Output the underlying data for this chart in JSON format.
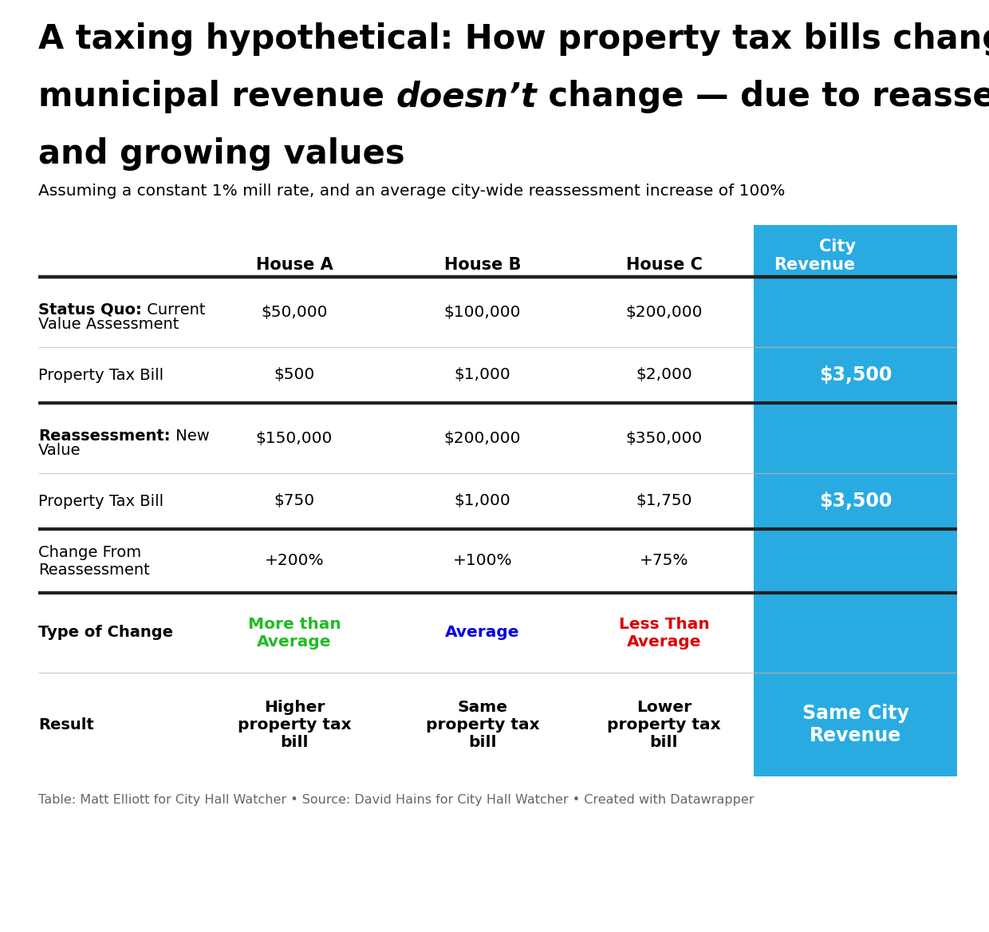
{
  "title_parts": [
    {
      "text": "A taxing hypothetical: How property tax bills change — and\nmunicipial revenue ",
      "bold": true,
      "italic": false
    },
    {
      "text": "doesn’t",
      "bold": true,
      "italic": true
    },
    {
      "text": " change — due to reassessment\nand growing values",
      "bold": true,
      "italic": false
    }
  ],
  "subtitle": "Assuming a constant 1% mill rate, and an average city-wide reassessment increase of 100%",
  "footer": "Table: Matt Elliott for City Hall Watcher • Source: David Hains for City Hall Watcher • Created with Datawrapper",
  "col_headers": [
    "House A",
    "House B",
    "House C",
    "City\nRevenue"
  ],
  "cyan_color": "#29ABE2",
  "rows": [
    {
      "label_bold": "Status Quo:",
      "label_normal": " Current\nValue Assessment",
      "house_a": "$50,000",
      "house_b": "$100,000",
      "house_c": "$200,000",
      "city_rev": "",
      "city_rev_show": false,
      "thick_top": true,
      "thick_bottom": false,
      "thin_bottom": true,
      "type_of_change": false,
      "is_result": false
    },
    {
      "label_bold": "",
      "label_normal": "Property Tax Bill",
      "house_a": "$500",
      "house_b": "$1,000",
      "house_c": "$2,000",
      "city_rev": "$3,500",
      "city_rev_show": true,
      "thick_top": false,
      "thick_bottom": true,
      "thin_bottom": false,
      "type_of_change": false,
      "is_result": false
    },
    {
      "label_bold": "Reassessment:",
      "label_normal": " New\nValue",
      "house_a": "$150,000",
      "house_b": "$200,000",
      "house_c": "$350,000",
      "city_rev": "",
      "city_rev_show": false,
      "thick_top": false,
      "thick_bottom": false,
      "thin_bottom": true,
      "type_of_change": false,
      "is_result": false
    },
    {
      "label_bold": "",
      "label_normal": "Property Tax Bill",
      "house_a": "$750",
      "house_b": "$1,000",
      "house_c": "$1,750",
      "city_rev": "$3,500",
      "city_rev_show": true,
      "thick_top": false,
      "thick_bottom": true,
      "thin_bottom": false,
      "type_of_change": false,
      "is_result": false
    },
    {
      "label_bold": "",
      "label_normal": "Change From\nReassessment",
      "house_a": "+200%",
      "house_b": "+100%",
      "house_c": "+75%",
      "city_rev": "",
      "city_rev_show": false,
      "thick_top": false,
      "thick_bottom": false,
      "thin_bottom": false,
      "type_of_change": false,
      "is_result": false
    },
    {
      "label_bold": "Type of Change",
      "label_normal": "",
      "house_a": "More than\nAverage",
      "house_b": "Average",
      "house_c": "Less Than\nAverage",
      "city_rev": "",
      "city_rev_show": false,
      "thick_top": true,
      "thick_bottom": false,
      "thin_bottom": true,
      "type_of_change": true,
      "is_result": false
    },
    {
      "label_bold": "Result",
      "label_normal": "",
      "house_a": "Higher\nproperty tax\nbill",
      "house_b": "Same\nproperty tax\nbill",
      "house_c": "Lower\nproperty tax\nbill",
      "city_rev": "Same City\nRevenue",
      "city_rev_show": true,
      "thick_top": false,
      "thick_bottom": false,
      "thin_bottom": false,
      "type_of_change": false,
      "is_result": true
    }
  ],
  "type_colors": {
    "house_a": "#22BB22",
    "house_b": "#0000DD",
    "house_c": "#DD0000"
  },
  "fig_width": 12.4,
  "fig_height": 11.68,
  "dpi": 100
}
